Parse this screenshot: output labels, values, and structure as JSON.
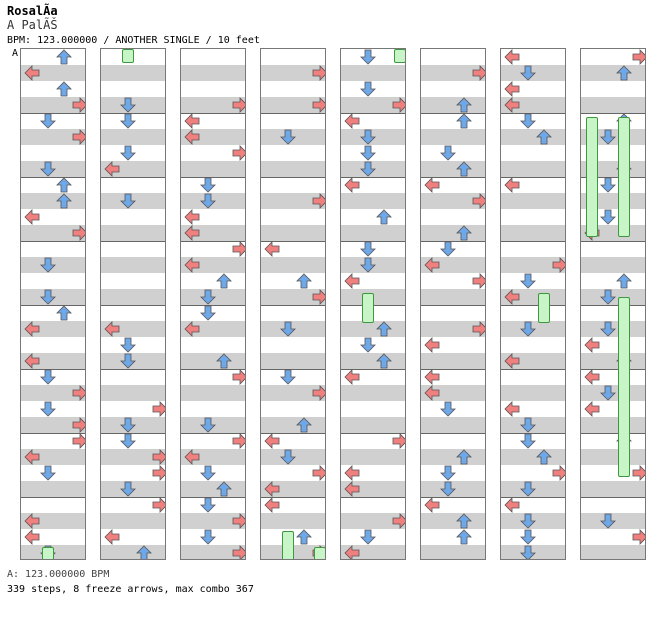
{
  "song": {
    "title": "RosalÃ­a",
    "artist": "A PalÃŠ",
    "meta": "BPM: 123.000000 / ANOTHER SINGLE / 10 feet"
  },
  "marker_label": "A",
  "footer": {
    "bpm_line": "A: 123.000000 BPM",
    "stats_line": "339 steps, 8 freeze arrows, max combo 367"
  },
  "colors": {
    "left_arrow": "#f08080",
    "down_arrow": "#6fa8e8",
    "up_arrow": "#6fa8e8",
    "right_arrow": "#f08080",
    "freeze_fill": "#c8f5c8",
    "stripe": "#d0d0d0"
  },
  "chart": {
    "columns": 8,
    "lanes": [
      "left",
      "down",
      "up",
      "right"
    ],
    "beats_per_column": 32,
    "steps": 339,
    "freeze_arrows": 8,
    "max_combo": 367
  }
}
